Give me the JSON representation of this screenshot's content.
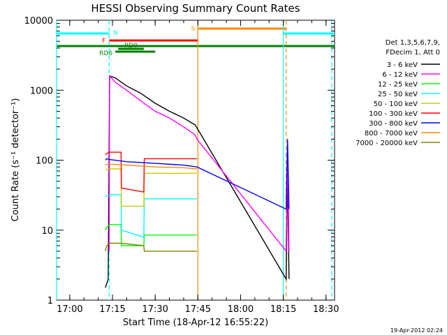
{
  "chart_data": {
    "type": "line",
    "title": "HESSI Observing Summary Count Rates",
    "xlabel": "Start Time (18-Apr-12 16:55:22)",
    "ylabel": "Count Rate (s⁻¹ detector⁻¹)",
    "y_scale": "log",
    "ylim": [
      1,
      10000
    ],
    "xlim": [
      "16:55:22",
      "18:33:00"
    ],
    "x_ticks": [
      "17:00",
      "17:15",
      "17:30",
      "17:45",
      "18:00",
      "18:15",
      "18:30"
    ],
    "y_ticks": [
      "1",
      "10",
      "100",
      "1000",
      "10000"
    ],
    "grid": false,
    "legend_position": "right",
    "legend_header": [
      "Det 1,3,5,6,7,9,",
      "FDecim 1, Att 0"
    ],
    "series": [
      {
        "name": "3 - 6 keV",
        "color": "#000000",
        "x": [
          "17:12:30",
          "17:13:30",
          "17:14:00",
          "17:16:00",
          "17:20:00",
          "17:25:00",
          "17:30:00",
          "17:35:00",
          "17:40:00",
          "17:44:00",
          "17:44:40",
          "18:16:00",
          "18:16:30",
          "18:17:00"
        ],
        "values": [
          1.5,
          2,
          1600,
          1500,
          1150,
          900,
          650,
          500,
          400,
          320,
          290,
          2,
          80,
          2
        ]
      },
      {
        "name": "6 - 12 keV",
        "color": "#ff00ff",
        "x": [
          "17:13:50",
          "17:14:00",
          "17:16:00",
          "17:20:00",
          "17:25:00",
          "17:30:00",
          "17:35:00",
          "17:40:00",
          "17:44:00",
          "17:44:40",
          "18:16:00",
          "18:16:30",
          "18:17:00"
        ],
        "values": [
          5,
          1600,
          1300,
          1000,
          700,
          500,
          400,
          300,
          230,
          200,
          5,
          150,
          5
        ]
      },
      {
        "name": "12 - 25 keV",
        "color": "#00ff00",
        "x": [
          "17:12:30",
          "17:13:00",
          "17:14:00",
          "17:18:00",
          "17:18:10",
          "17:26:00",
          "17:26:10",
          "17:44:40"
        ],
        "values": [
          10,
          11,
          12,
          12,
          6,
          6,
          8.5,
          8.5
        ]
      },
      {
        "name": "25 - 50 keV",
        "color": "#00ffff",
        "x": [
          "17:12:30",
          "17:13:00",
          "17:14:00",
          "17:18:00",
          "17:18:10",
          "17:26:00",
          "17:26:10",
          "17:44:40"
        ],
        "values": [
          30,
          31,
          32,
          32,
          10,
          8,
          28,
          28
        ]
      },
      {
        "name": "50 - 100 keV",
        "color": "#cccc00",
        "x": [
          "17:12:30",
          "17:13:00",
          "17:14:00",
          "17:18:00",
          "17:18:10",
          "17:26:00",
          "17:26:10",
          "17:44:40"
        ],
        "values": [
          72,
          74,
          75,
          75,
          22,
          22,
          65,
          65
        ]
      },
      {
        "name": "100 - 300 keV",
        "color": "#ff0000",
        "x": [
          "17:12:30",
          "17:13:00",
          "17:14:00",
          "17:18:00",
          "17:18:10",
          "17:26:00",
          "17:26:10",
          "17:44:40"
        ],
        "values": [
          120,
          125,
          130,
          130,
          40,
          35,
          105,
          105
        ]
      },
      {
        "name": "300 - 800 keV",
        "color": "#0000ff",
        "x": [
          "17:12:30",
          "17:13:00",
          "17:14:00",
          "17:20:00",
          "17:30:00",
          "17:40:00",
          "17:44:40",
          "18:16:00",
          "18:16:30",
          "18:17:00"
        ],
        "values": [
          100,
          105,
          102,
          95,
          90,
          85,
          80,
          20,
          200,
          20
        ]
      },
      {
        "name": "800 - 7000 keV",
        "color": "#ff8800",
        "x": [
          "17:12:30",
          "17:13:00",
          "17:14:00",
          "17:20:00",
          "17:30:00",
          "17:40:00",
          "17:44:40"
        ],
        "values": [
          85,
          87,
          88,
          85,
          80,
          78,
          75
        ]
      },
      {
        "name": "7000 - 20000 keV",
        "color": "#808000",
        "x": [
          "17:12:30",
          "17:13:00",
          "17:14:00",
          "17:18:00",
          "17:18:10",
          "17:26:00",
          "17:26:10",
          "17:44:40"
        ],
        "values": [
          5,
          6,
          6.5,
          6.5,
          6.5,
          6,
          5,
          5
        ]
      }
    ],
    "flag_bars": [
      {
        "label": "N",
        "color": "#00ffff",
        "segments": [
          [
            "16:55:22",
            "17:13:50"
          ],
          [
            "18:15:00",
            "18:33:00"
          ]
        ]
      },
      {
        "label": "F",
        "color": "#ff0000",
        "segments": [
          [
            "17:13:50",
            "17:45:00"
          ]
        ]
      },
      {
        "label": "S",
        "color": "#ff8800",
        "segments": [
          [
            "17:45:00",
            "18:16:00"
          ]
        ]
      },
      {
        "label": "RD0",
        "color": "#008000",
        "segments": [
          [
            "17:17:00",
            "17:26:00"
          ]
        ]
      },
      {
        "label": "RD6",
        "color": "#008000",
        "segments": [
          [
            "17:16:00",
            "17:30:00"
          ]
        ]
      },
      {
        "label": "",
        "color": "#008000",
        "segments": [
          [
            "16:55:22",
            "18:33:00"
          ]
        ]
      }
    ],
    "vertical_markers": [
      {
        "x": "16:55:22",
        "color": "#00ffff",
        "style": "solid"
      },
      {
        "x": "17:13:50",
        "color": "#00ffff",
        "style": "dashed"
      },
      {
        "x": "17:45:00",
        "color": "#ff8800",
        "style": "solid"
      },
      {
        "x": "18:15:00",
        "color": "#00ffff",
        "style": "solid"
      },
      {
        "x": "18:16:00",
        "color": "#ff8800",
        "style": "dashed"
      },
      {
        "x": "18:32:00",
        "color": "#00ffff",
        "style": "dashed"
      }
    ]
  },
  "footer_timestamp": "19-Apr-2012 02:24"
}
